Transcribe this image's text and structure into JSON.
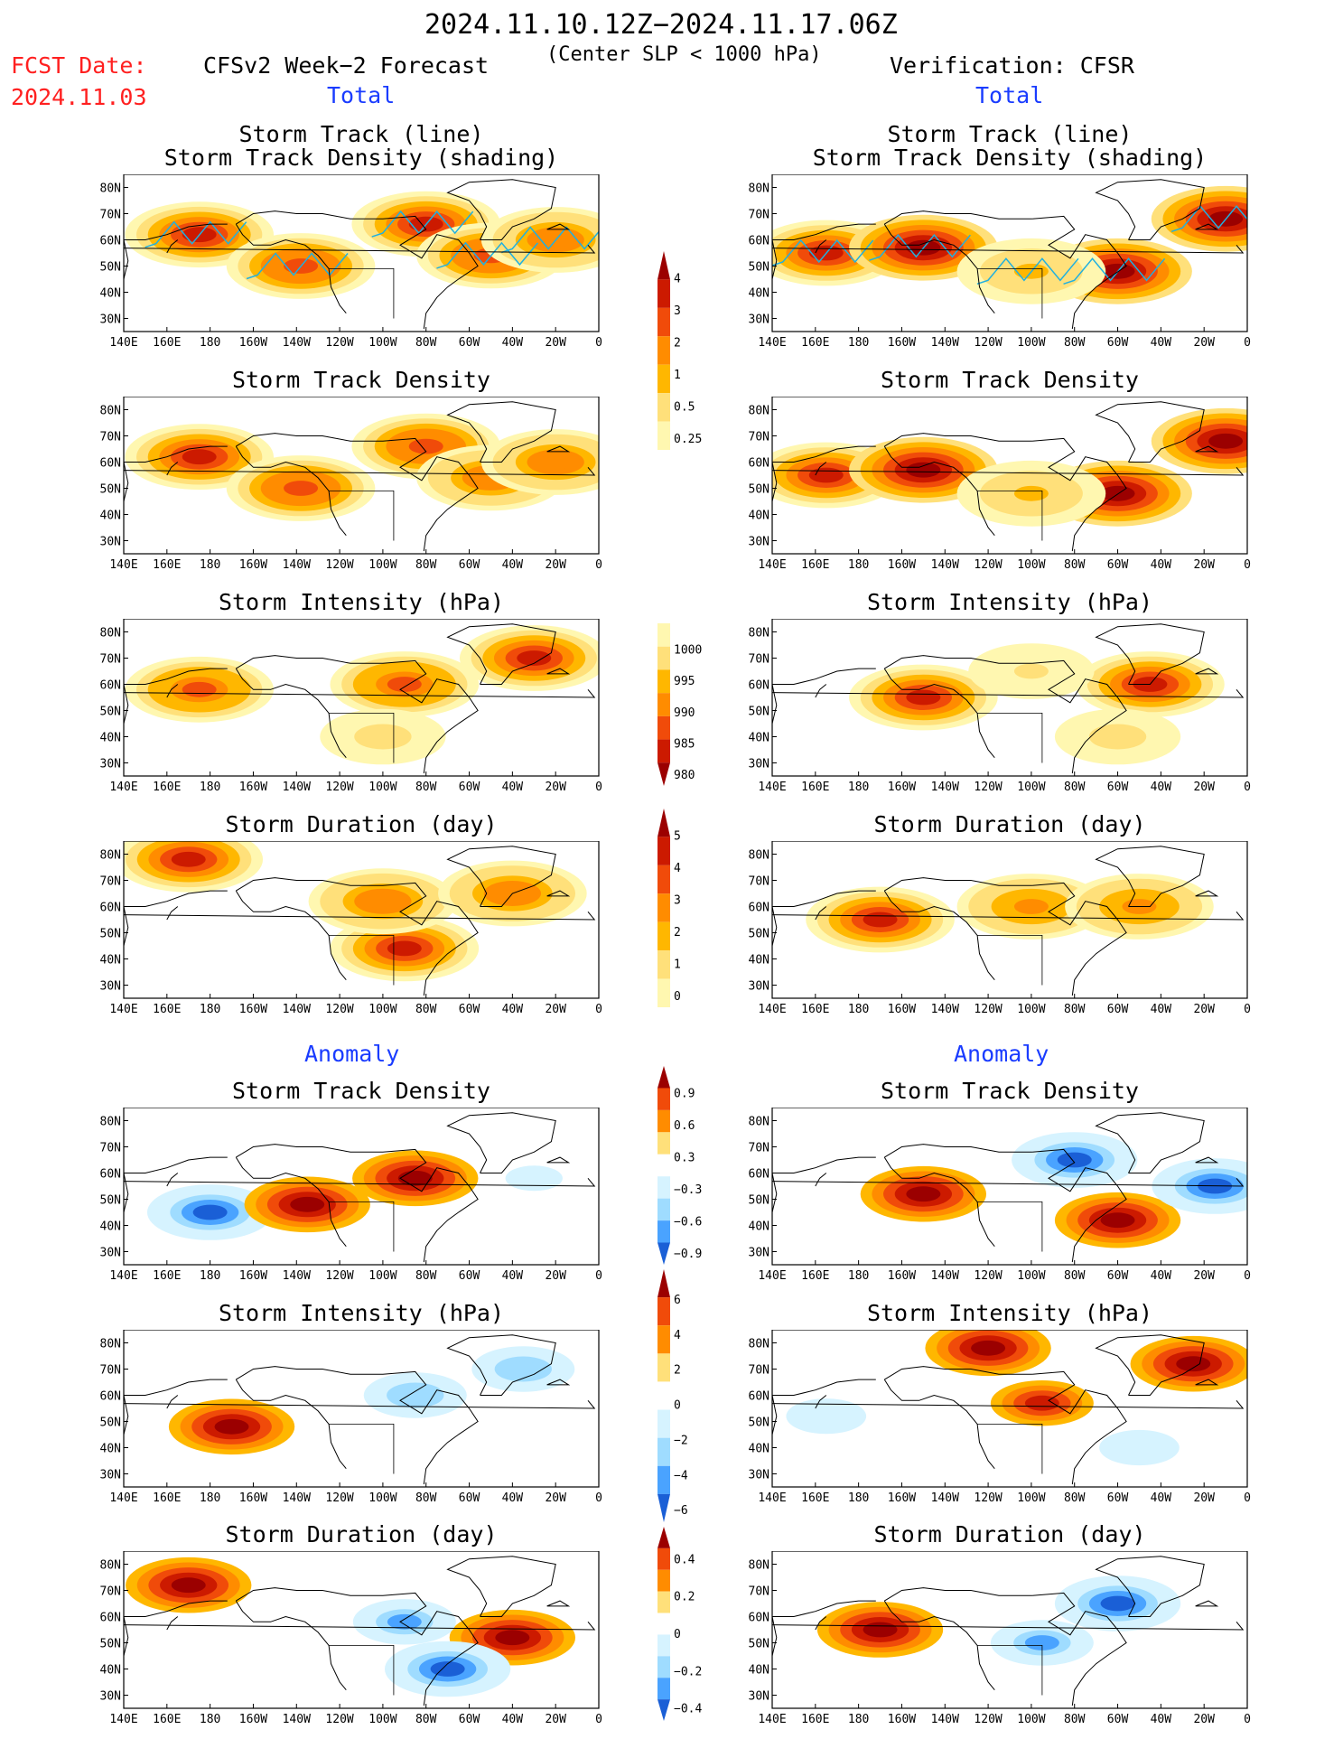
{
  "header": {
    "date_range": "2024.11.10.12Z−2024.11.17.06Z",
    "subtitle": "(Center SLP < 1000 hPa)",
    "forecast_title": "CFSv2 Week−2 Forecast",
    "verification_title": "Verification: CFSR",
    "fcst_label": "FCST Date:",
    "fcst_date": "2024.11.03",
    "section_total": "Total",
    "section_anomaly": "Anomaly"
  },
  "colors": {
    "warm": [
      "#fff7b0",
      "#ffe07a",
      "#ffb700",
      "#ff8c00",
      "#f04b0a",
      "#cc1a00",
      "#9b0000"
    ],
    "cool": [
      "#ffffff",
      "#d6f3ff",
      "#9fdcff",
      "#4aa3ff",
      "#1a5fd6"
    ],
    "track_line": "#1fb0e0",
    "header_red": "#ff2020",
    "header_blue": "#1a3cff"
  },
  "axes": {
    "lon_ticks": [
      "140E",
      "160E",
      "180",
      "160W",
      "140W",
      "120W",
      "100W",
      "80W",
      "60W",
      "40W",
      "20W",
      "0"
    ],
    "lat_ticks": [
      "80N",
      "70N",
      "60N",
      "50N",
      "40N",
      "30N"
    ]
  },
  "colorbars": [
    {
      "id": "density",
      "ticks": [
        "4",
        "3",
        "2",
        "1",
        "0.5",
        "0.25"
      ]
    },
    {
      "id": "intensity",
      "ticks": [
        "1000",
        "995",
        "990",
        "985",
        "980"
      ]
    },
    {
      "id": "duration",
      "ticks": [
        "5",
        "4",
        "3",
        "2",
        "1",
        "0"
      ]
    },
    {
      "id": "density_anom",
      "ticks": [
        "0.9",
        "0.6",
        "0.3",
        "−0.3",
        "−0.6",
        "−0.9"
      ]
    },
    {
      "id": "intensity_anom",
      "ticks": [
        "6",
        "4",
        "2",
        "0",
        "−2",
        "−4",
        "−6"
      ]
    },
    {
      "id": "duration_anom",
      "ticks": [
        "0.4",
        "0.2",
        "0",
        "−0.2",
        "−0.4"
      ]
    }
  ],
  "panels": [
    {
      "id": "fc-track",
      "title1": "Storm Track (line)",
      "title2": "Storm Track Density (shading)"
    },
    {
      "id": "vf-track",
      "title1": "Storm Track (line)",
      "title2": "Storm Track Density (shading)"
    },
    {
      "id": "fc-density",
      "title1": "Storm Track Density"
    },
    {
      "id": "vf-density",
      "title1": "Storm Track Density"
    },
    {
      "id": "fc-intensity",
      "title1": "Storm Intensity (hPa)"
    },
    {
      "id": "vf-intensity",
      "title1": "Storm Intensity (hPa)"
    },
    {
      "id": "fc-duration",
      "title1": "Storm Duration (day)"
    },
    {
      "id": "vf-duration",
      "title1": "Storm Duration (day)"
    },
    {
      "id": "fc-density-anom",
      "title1": "Storm Track Density"
    },
    {
      "id": "vf-density-anom",
      "title1": "Storm Track Density"
    },
    {
      "id": "fc-intensity-anom",
      "title1": "Storm Intensity (hPa)"
    },
    {
      "id": "vf-intensity-anom",
      "title1": "Storm Intensity (hPa)"
    },
    {
      "id": "fc-duration-anom",
      "title1": "Storm Duration (day)"
    },
    {
      "id": "vf-duration-anom",
      "title1": "Storm Duration (day)"
    }
  ],
  "chart_data": {
    "type": "heatmap",
    "lon_range": [
      "140E",
      "0"
    ],
    "lat_range": [
      "25N",
      "85N"
    ],
    "grid": false,
    "legend_position": "center vertical colorbars",
    "fields": [
      {
        "id": "fc-track",
        "scale": "density",
        "blobs": [
          [
            175,
            62,
            3.5
          ],
          [
            -138,
            50,
            3
          ],
          [
            -80,
            66,
            3.5
          ],
          [
            -50,
            54,
            3
          ],
          [
            -20,
            60,
            2.5
          ]
        ]
      },
      {
        "id": "vf-track",
        "scale": "density",
        "blobs": [
          [
            165,
            55,
            3.5
          ],
          [
            -150,
            57,
            4
          ],
          [
            -60,
            48,
            4
          ],
          [
            -10,
            68,
            4
          ],
          [
            -100,
            48,
            1.5
          ]
        ]
      },
      {
        "id": "fc-density",
        "scale": "density",
        "blobs": [
          [
            175,
            62,
            3.5
          ],
          [
            -138,
            50,
            3
          ],
          [
            -80,
            66,
            3
          ],
          [
            -50,
            54,
            2.5
          ],
          [
            -20,
            60,
            2.5
          ]
        ]
      },
      {
        "id": "vf-density",
        "scale": "density",
        "blobs": [
          [
            165,
            55,
            3.5
          ],
          [
            -150,
            57,
            4
          ],
          [
            -60,
            48,
            4
          ],
          [
            -10,
            68,
            4
          ],
          [
            -100,
            48,
            1.5
          ]
        ]
      },
      {
        "id": "fc-intensity",
        "scale": "intensity",
        "blobs": [
          [
            -30,
            70,
            982
          ],
          [
            175,
            58,
            988
          ],
          [
            -90,
            60,
            988
          ],
          [
            -100,
            40,
            997
          ]
        ]
      },
      {
        "id": "vf-intensity",
        "scale": "intensity",
        "blobs": [
          [
            -150,
            55,
            983
          ],
          [
            -45,
            60,
            983
          ],
          [
            -100,
            65,
            998
          ],
          [
            -60,
            40,
            997
          ]
        ]
      },
      {
        "id": "fc-duration",
        "scale": "duration",
        "blobs": [
          [
            170,
            78,
            4.5
          ],
          [
            -90,
            44,
            4.5
          ],
          [
            -100,
            62,
            3
          ],
          [
            -40,
            65,
            3
          ]
        ]
      },
      {
        "id": "vf-duration",
        "scale": "duration",
        "blobs": [
          [
            -170,
            55,
            4.5
          ],
          [
            -100,
            60,
            2.5
          ],
          [
            -50,
            60,
            2.5
          ]
        ]
      },
      {
        "id": "fc-density-anom",
        "scale": "density_anom",
        "blobs": [
          [
            180,
            45,
            -0.9
          ],
          [
            -85,
            58,
            0.9
          ],
          [
            -135,
            48,
            0.9
          ],
          [
            -30,
            58,
            -0.4
          ]
        ]
      },
      {
        "id": "vf-density-anom",
        "scale": "density_anom",
        "blobs": [
          [
            -80,
            65,
            -0.9
          ],
          [
            -150,
            52,
            0.9
          ],
          [
            -60,
            42,
            0.9
          ],
          [
            -15,
            55,
            -0.9
          ]
        ]
      },
      {
        "id": "fc-intensity-anom",
        "scale": "intensity_anom",
        "blobs": [
          [
            -170,
            48,
            6
          ],
          [
            -85,
            60,
            -4
          ],
          [
            -35,
            70,
            -4
          ],
          [
            -60,
            50,
            1.5
          ]
        ]
      },
      {
        "id": "vf-intensity-anom",
        "scale": "intensity_anom",
        "blobs": [
          [
            -120,
            78,
            6
          ],
          [
            -25,
            72,
            6
          ],
          [
            -95,
            57,
            5
          ],
          [
            165,
            52,
            -3
          ],
          [
            -50,
            40,
            -3
          ]
        ]
      },
      {
        "id": "fc-duration-anom",
        "scale": "duration_anom",
        "blobs": [
          [
            170,
            72,
            0.4
          ],
          [
            -40,
            52,
            0.4
          ],
          [
            -90,
            58,
            -0.3
          ],
          [
            -70,
            40,
            -0.4
          ]
        ]
      },
      {
        "id": "vf-duration-anom",
        "scale": "duration_anom",
        "blobs": [
          [
            -170,
            55,
            0.4
          ],
          [
            -60,
            65,
            -0.4
          ],
          [
            -95,
            50,
            -0.3
          ]
        ]
      }
    ]
  }
}
